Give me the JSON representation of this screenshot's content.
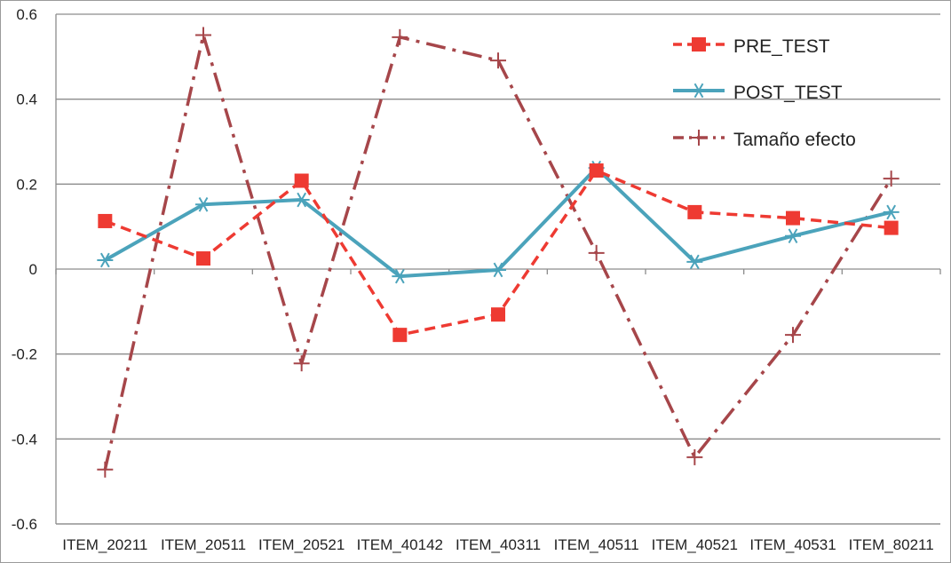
{
  "chart_data": {
    "type": "line",
    "categories": [
      "ITEM_20211",
      "ITEM_20511",
      "ITEM_20521",
      "ITEM_40142",
      "ITEM_40311",
      "ITEM_40511",
      "ITEM_40521",
      "ITEM_40531",
      "ITEM_80211"
    ],
    "series": [
      {
        "name": "PRE_TEST",
        "color": "#ee3a32",
        "marker": "square",
        "line_style": "dashed",
        "values": [
          0.113,
          0.025,
          0.208,
          -0.155,
          -0.107,
          0.232,
          0.134,
          0.12,
          0.097
        ]
      },
      {
        "name": "POST_TEST",
        "color": "#4ba3bb",
        "marker": "asterisk",
        "line_style": "solid",
        "values": [
          0.021,
          0.152,
          0.163,
          -0.017,
          -0.002,
          0.238,
          0.017,
          0.078,
          0.134
        ]
      },
      {
        "name": "Tamaño efecto",
        "color": "#a6464a",
        "marker": "plus",
        "line_style": "dash-dot",
        "values": [
          -0.472,
          0.551,
          -0.222,
          0.546,
          0.491,
          0.038,
          -0.443,
          -0.155,
          0.213
        ]
      }
    ],
    "yticks": [
      "0.6",
      "0.4",
      "0.2",
      "0",
      "-0.2",
      "-0.4",
      "-0.6"
    ],
    "ylim": [
      -0.6,
      0.6
    ],
    "grid": true,
    "legend_position": "top-right"
  }
}
